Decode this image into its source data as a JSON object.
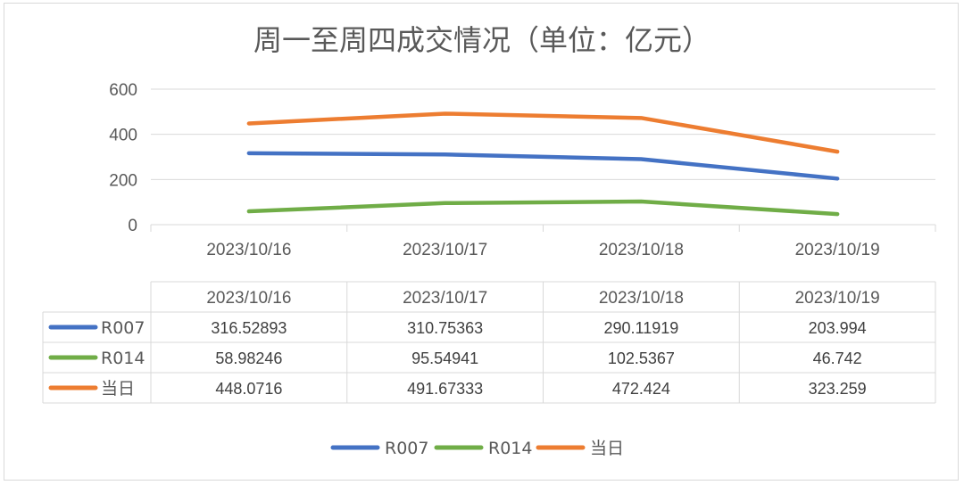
{
  "chart_data": {
    "type": "line",
    "title": "周一至周四成交情况（单位：亿元）",
    "categories": [
      "2023/10/16",
      "2023/10/17",
      "2023/10/18",
      "2023/10/19"
    ],
    "ylim": [
      0,
      600
    ],
    "yticks": [
      "0",
      "200",
      "400",
      "600"
    ],
    "grid": true,
    "legend": "bottom",
    "data_table": true,
    "series": [
      {
        "name": "R007",
        "color": "#4472C4",
        "values": [
          316.52893,
          310.75363,
          290.11919,
          203.994
        ],
        "labels": [
          "316.52893",
          "310.75363",
          "290.11919",
          "203.994"
        ]
      },
      {
        "name": "R014",
        "color": "#70AD47",
        "values": [
          58.98246,
          95.54941,
          102.5367,
          46.742
        ],
        "labels": [
          "58.98246",
          "95.54941",
          "102.5367",
          "46.742"
        ]
      },
      {
        "name": "当日",
        "color": "#ED7D31",
        "values": [
          448.0716,
          491.67333,
          472.424,
          323.259
        ],
        "labels": [
          "448.0716",
          "491.67333",
          "472.424",
          "323.259"
        ]
      }
    ]
  }
}
